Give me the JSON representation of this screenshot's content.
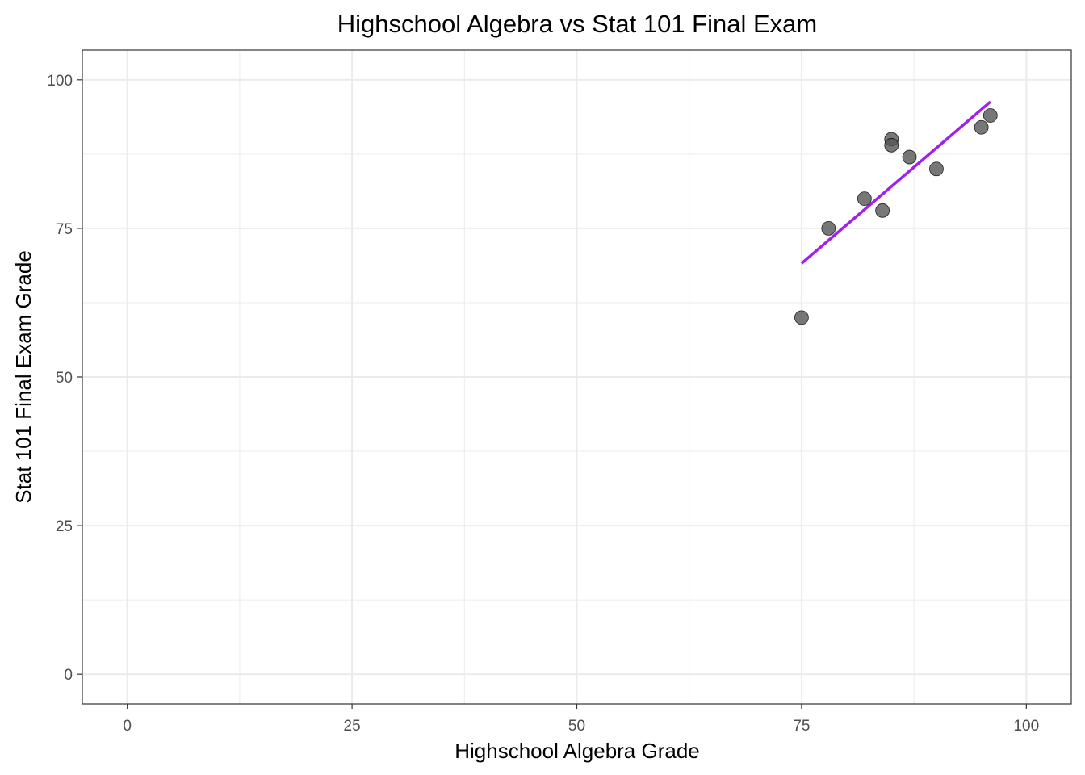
{
  "chart_data": {
    "type": "scatter",
    "title": "Highschool Algebra vs Stat 101 Final Exam",
    "xlabel": "Highschool Algebra Grade",
    "ylabel": "Stat 101 Final Exam Grade",
    "xlim": [
      -5,
      105
    ],
    "ylim": [
      -5,
      105
    ],
    "x_ticks": [
      0,
      25,
      50,
      75,
      100
    ],
    "y_ticks": [
      0,
      25,
      50,
      75,
      100
    ],
    "x_tick_labels": [
      "0",
      "25",
      "50",
      "75",
      "100"
    ],
    "y_tick_labels": [
      "0",
      "25",
      "50",
      "75",
      "100"
    ],
    "grid": true,
    "legend": "none",
    "points": [
      {
        "x": 75,
        "y": 60
      },
      {
        "x": 78,
        "y": 75
      },
      {
        "x": 82,
        "y": 80
      },
      {
        "x": 84,
        "y": 78
      },
      {
        "x": 85,
        "y": 90
      },
      {
        "x": 85,
        "y": 89
      },
      {
        "x": 87,
        "y": 87
      },
      {
        "x": 90,
        "y": 85
      },
      {
        "x": 95,
        "y": 92
      },
      {
        "x": 96,
        "y": 94
      }
    ],
    "fit_line": {
      "x": [
        75,
        96
      ],
      "y": [
        69.1,
        96.3
      ]
    },
    "colors": {
      "point_fill": "#555555",
      "point_stroke": "#000000",
      "fit_line": "#a020f0",
      "grid": "#ebebeb",
      "panel_border": "#333333"
    }
  }
}
